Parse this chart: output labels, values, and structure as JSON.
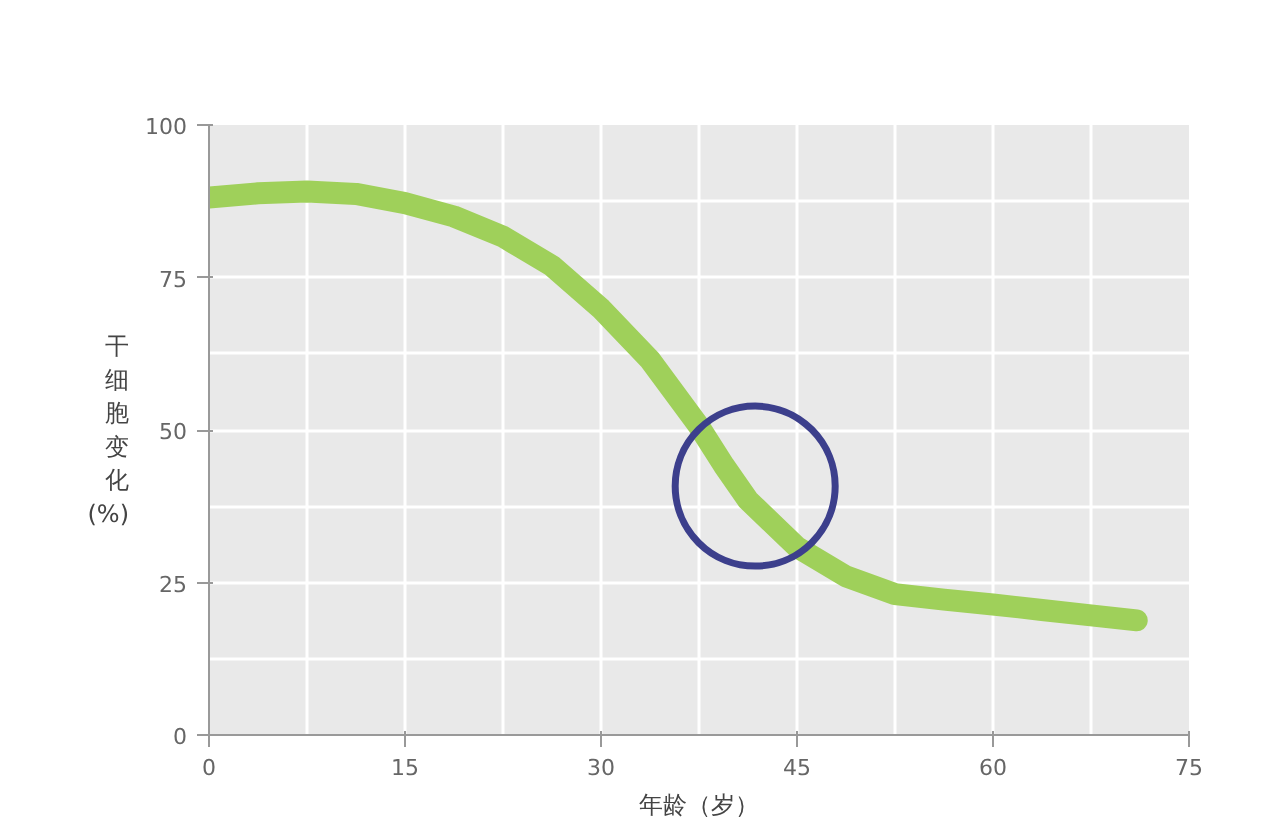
{
  "chart_data": {
    "type": "line",
    "xlabel": "年龄（岁）",
    "ylabel": "干细胞变化 (%)",
    "x": [
      0,
      3.75,
      7.5,
      11.25,
      15,
      18.75,
      22.5,
      26.25,
      30,
      33.75,
      37.5,
      39.4,
      41.25,
      45,
      48.75,
      52.5,
      56.25,
      60,
      63.75,
      67.5,
      71
    ],
    "series": [
      {
        "color": "#9fd05a",
        "values": [
          88.1,
          88.8,
          89.1,
          88.7,
          87.2,
          85,
          81.7,
          76.9,
          69.9,
          61.5,
          50.6,
          44.2,
          38.5,
          30.8,
          26,
          23.1,
          22.2,
          21.4,
          20.5,
          19.6,
          18.8
        ]
      }
    ],
    "xlim": [
      0,
      75
    ],
    "xticks": [
      0,
      15,
      30,
      45,
      60,
      75
    ],
    "ylim": [
      0,
      100
    ],
    "yticks": [
      0,
      25,
      50,
      75,
      100
    ],
    "grid": true,
    "line_style": "solid"
  }
}
